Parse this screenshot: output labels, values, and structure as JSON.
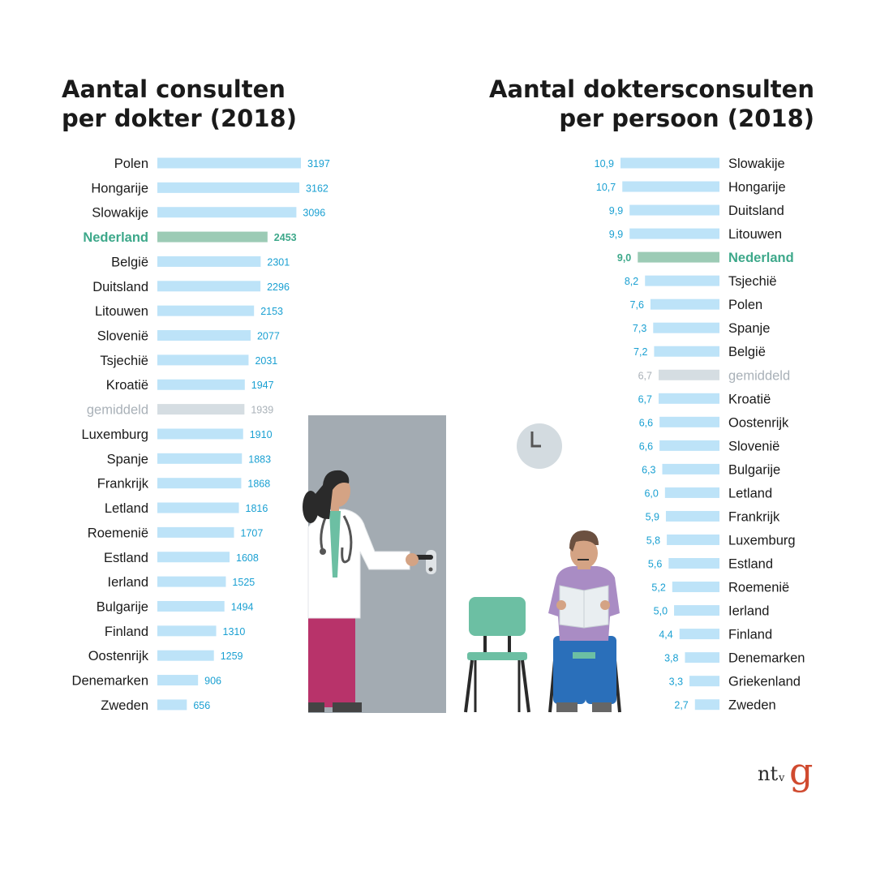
{
  "titles": {
    "left": [
      "Aantal consulten",
      "per dokter (2018)"
    ],
    "right": [
      "Aantal doktersconsulten",
      "per persoon (2018)"
    ]
  },
  "colors": {
    "bar": "#bde3f8",
    "value": "#1aa0d2",
    "label": "#1a1a1a",
    "highlight": "#3da88a",
    "highlight_bar": "#9ccbb5",
    "average": "#a9b1b8",
    "average_bar": "#d5dde2"
  },
  "chart_data": [
    {
      "type": "bar",
      "orientation": "horizontal",
      "title": "Aantal consulten per dokter (2018)",
      "highlight": "Nederland",
      "average_category": "gemiddeld",
      "categories": [
        "Polen",
        "Hongarije",
        "Slowakije",
        "Nederland",
        "België",
        "Duitsland",
        "Litouwen",
        "Slovenië",
        "Tsjechië",
        "Kroatië",
        "gemiddeld",
        "Luxemburg",
        "Spanje",
        "Frankrijk",
        "Letland",
        "Roemenië",
        "Estland",
        "Ierland",
        "Bulgarije",
        "Finland",
        "Oostenrijk",
        "Denemarken",
        "Zweden"
      ],
      "values": [
        3197,
        3162,
        3096,
        2453,
        2301,
        2296,
        2153,
        2077,
        2031,
        1947,
        1939,
        1910,
        1883,
        1868,
        1816,
        1707,
        1608,
        1525,
        1494,
        1310,
        1259,
        906,
        656
      ],
      "value_labels": [
        "3197",
        "3162",
        "3096",
        "2453",
        "2301",
        "2296",
        "2153",
        "2077",
        "2031",
        "1947",
        "1939",
        "1910",
        "1883",
        "1868",
        "1816",
        "1707",
        "1608",
        "1525",
        "1494",
        "1310",
        "1259",
        "906",
        "656"
      ],
      "xlim": [
        0,
        3197
      ]
    },
    {
      "type": "bar",
      "orientation": "horizontal",
      "title": "Aantal doktersconsulten per persoon (2018)",
      "highlight": "Nederland",
      "average_category": "gemiddeld",
      "categories": [
        "Slowakije",
        "Hongarije",
        "Duitsland",
        "Litouwen",
        "Nederland",
        "Tsjechië",
        "Polen",
        "Spanje",
        "België",
        "gemiddeld",
        "Kroatië",
        "Oostenrijk",
        "Slovenië",
        "Bulgarije",
        "Letland",
        "Frankrijk",
        "Luxemburg",
        "Estland",
        "Roemenië",
        "Ierland",
        "Finland",
        "Denemarken",
        "Griekenland",
        "Zweden"
      ],
      "values": [
        10.9,
        10.7,
        9.9,
        9.9,
        9.0,
        8.2,
        7.6,
        7.3,
        7.2,
        6.7,
        6.7,
        6.6,
        6.6,
        6.3,
        6.0,
        5.9,
        5.8,
        5.6,
        5.2,
        5.0,
        4.4,
        3.8,
        3.3,
        2.7
      ],
      "value_labels": [
        "10,9",
        "10,7",
        "9,9",
        "9,9",
        "9,0",
        "8,2",
        "7,6",
        "7,3",
        "7,2",
        "6,7",
        "6,7",
        "6,6",
        "6,6",
        "6,3",
        "6,0",
        "5,9",
        "5,8",
        "5,6",
        "5,2",
        "5,0",
        "4,4",
        "3,8",
        "3,3",
        "2,7"
      ],
      "xlim": [
        0,
        10.9
      ]
    }
  ],
  "illustration": {
    "scene": "doctor-opening-door-waiting-room",
    "door_color": "#a3abb2",
    "clock_color": "#d3dbe0",
    "chair_color": "#6cbfa3"
  },
  "logo": {
    "nt": "nt",
    "v": "v",
    "g": "g"
  }
}
